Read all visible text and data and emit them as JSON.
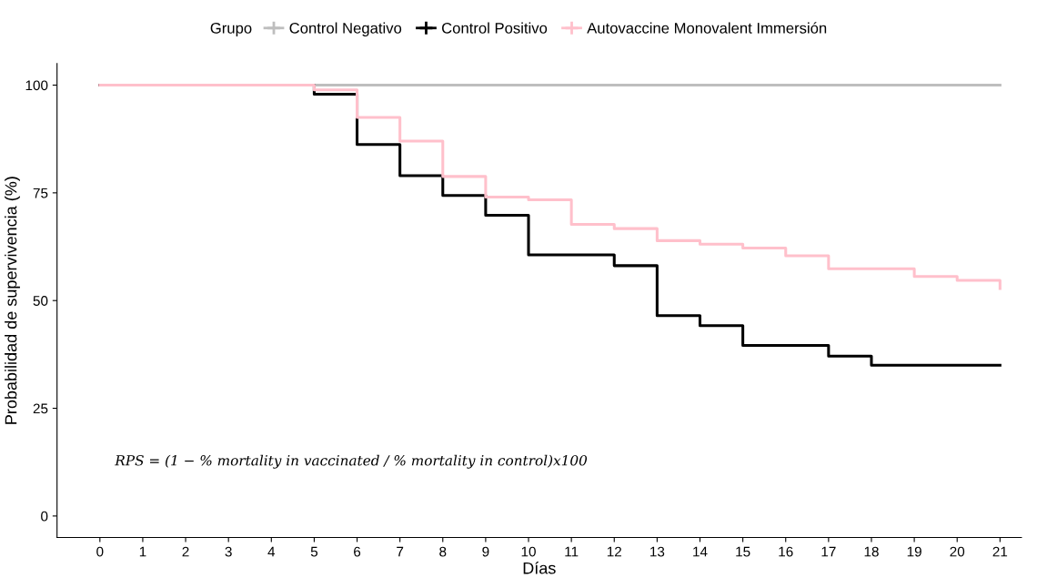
{
  "chart_data": {
    "type": "step",
    "xlabel": "Días",
    "ylabel": "Probabilidad de supervivencia (%)",
    "legend_title": "Grupo",
    "legend": "top",
    "series": [
      {
        "name": "Control Negativo",
        "color": "#bebebe",
        "x": [
          0,
          21
        ],
        "values": [
          100,
          100
        ]
      },
      {
        "name": "Control Positivo",
        "color": "#000000",
        "x": [
          0,
          5,
          6,
          7,
          8,
          9,
          10,
          12,
          13,
          14,
          15,
          17,
          18,
          21
        ],
        "values": [
          100,
          97.9,
          86.2,
          79.0,
          74.4,
          69.8,
          60.6,
          58.1,
          46.5,
          44.2,
          39.6,
          37.1,
          35.0,
          35.0
        ]
      },
      {
        "name": "Autovaccine Monovalent Immersión",
        "color": "#ffc0cb",
        "x": [
          0,
          5,
          6,
          7,
          8,
          9,
          10,
          11,
          12,
          13,
          14,
          15,
          16,
          17,
          19,
          20,
          21
        ],
        "values": [
          100,
          98.9,
          92.5,
          87.0,
          78.8,
          74.0,
          73.4,
          67.7,
          66.7,
          63.9,
          63.1,
          62.2,
          60.4,
          57.4,
          55.6,
          54.7,
          52.8
        ]
      }
    ],
    "xlim": [
      -1,
      21.5
    ],
    "xticks": [
      0,
      1,
      2,
      3,
      4,
      5,
      6,
      7,
      8,
      9,
      10,
      11,
      12,
      13,
      14,
      15,
      16,
      17,
      18,
      19,
      20,
      21
    ],
    "ylim": [
      -5,
      105
    ],
    "yticks": [
      0,
      25,
      50,
      75,
      100
    ],
    "grid": false,
    "annotations": [
      "RPS = (1 − % mortality in vaccinated / % mortality in control)x100"
    ]
  }
}
